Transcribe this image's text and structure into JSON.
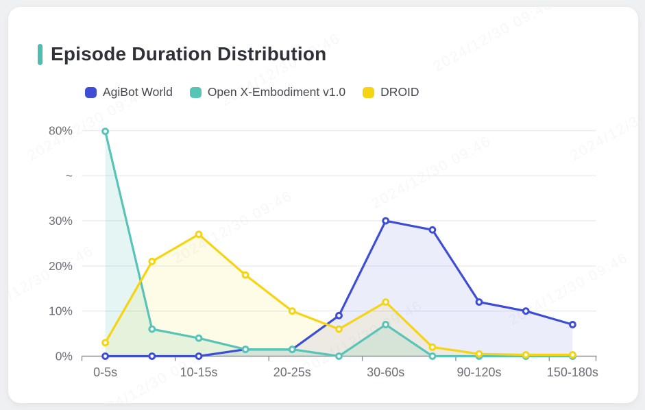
{
  "title": "Episode Duration Distribution",
  "watermark_text": "2024/12/30 09:46",
  "colors": {
    "page_bg": "#EFF0F2",
    "card_bg": "#FFFFFF",
    "accent_bar": "#4DBDB2",
    "title_text": "#2F3138",
    "legend_text": "#44464D",
    "axis_text": "#6E7079",
    "axis_line": "#8C909A",
    "grid_line": "#E9EBF1"
  },
  "chart_data": {
    "type": "line",
    "title": "Episode Duration Distribution",
    "legend_position": "top",
    "grid": true,
    "x_axis": {
      "n_categories": 11,
      "visible_labels": [
        "0-5s",
        "10-15s",
        "20-25s",
        "30-60s",
        "90-120s",
        "150-180s"
      ],
      "labeled_category_indices": [
        0,
        2,
        4,
        6,
        8,
        10
      ],
      "tick_boundary_indices": [
        0,
        2,
        4,
        6,
        8,
        10,
        11
      ]
    },
    "y_axis": {
      "unit": "%",
      "tick_labels": [
        "0%",
        "10%",
        "20%",
        "30%",
        "~",
        "80%"
      ],
      "linear_range": [
        0,
        30
      ],
      "break_between": [
        30,
        80
      ]
    },
    "series": [
      {
        "name": "AgiBot World",
        "color": "#3D4ED5",
        "fill": "rgba(61,78,213,0.10)",
        "values": [
          0,
          0,
          0,
          1.5,
          1.5,
          9,
          30,
          28,
          12,
          10,
          7
        ]
      },
      {
        "name": "Open X-Embodiment v1.0",
        "color": "#58C3B7",
        "fill": "rgba(88,195,183,0.16)",
        "values": [
          79.6,
          6,
          4,
          1.5,
          1.5,
          0,
          7,
          0,
          0,
          0,
          0
        ]
      },
      {
        "name": "DROID",
        "color": "#F6D411",
        "fill": "rgba(246,212,17,0.10)",
        "values": [
          3,
          21,
          27,
          18,
          10,
          6,
          12,
          2,
          0.5,
          0.3,
          0.3
        ]
      }
    ]
  }
}
